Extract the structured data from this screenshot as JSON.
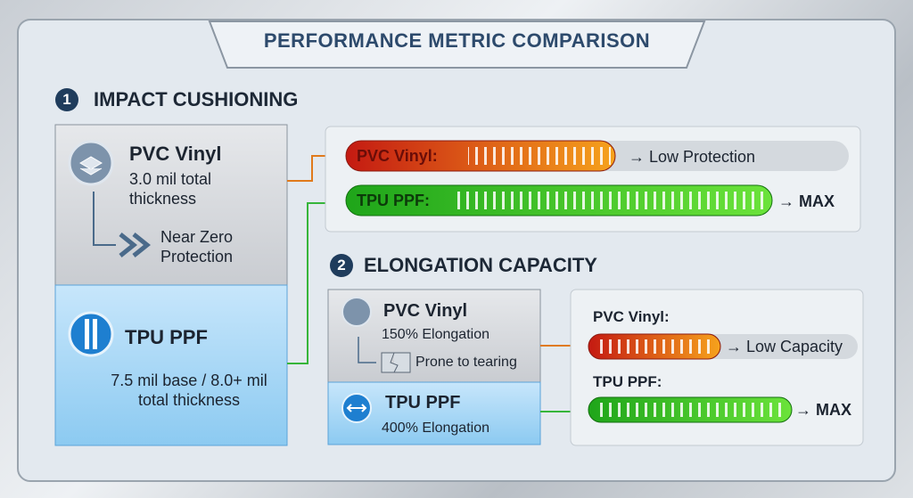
{
  "header": {
    "title": "PERFORMANCE METRIC COMPARISON"
  },
  "impact": {
    "number": "1",
    "title": "IMPACT CUSHIONING",
    "cards": [
      {
        "name": "PVC Vinyl",
        "detail": "3.0 mil total thickness",
        "note": "Near Zero Protection"
      },
      {
        "name": "TPU PPF",
        "detail": "7.5 mil base / 8.0+ mil total thickness"
      }
    ],
    "bars": [
      {
        "label": "PVC Vinyl:",
        "result": "→ Low Protection"
      },
      {
        "label": "TPU PPF:",
        "result": "→ MAX"
      }
    ]
  },
  "elongation": {
    "number": "2",
    "title": "ELONGATION CAPACITY",
    "cards": [
      {
        "name": "PVC Vinyl",
        "detail": "150% Elongation",
        "note": "Prone to tearing"
      },
      {
        "name": "TPU PPF",
        "detail": "400% Elongation"
      }
    ],
    "bars": [
      {
        "label": "PVC Vinyl:",
        "result": "→ Low Capacity"
      },
      {
        "label": "TPU PPF:",
        "result": "→ MAX"
      }
    ]
  }
}
